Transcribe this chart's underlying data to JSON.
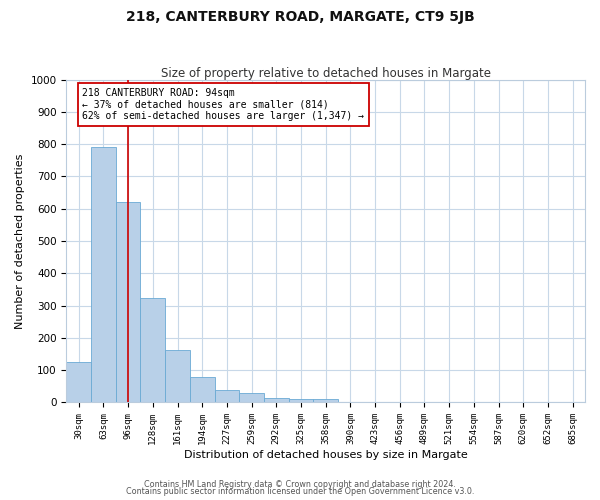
{
  "title": "218, CANTERBURY ROAD, MARGATE, CT9 5JB",
  "subtitle": "Size of property relative to detached houses in Margate",
  "xlabel": "Distribution of detached houses by size in Margate",
  "ylabel": "Number of detached properties",
  "bar_labels": [
    "30sqm",
    "63sqm",
    "96sqm",
    "128sqm",
    "161sqm",
    "194sqm",
    "227sqm",
    "259sqm",
    "292sqm",
    "325sqm",
    "358sqm",
    "390sqm",
    "423sqm",
    "456sqm",
    "489sqm",
    "521sqm",
    "554sqm",
    "587sqm",
    "620sqm",
    "652sqm",
    "685sqm"
  ],
  "bar_values": [
    125,
    790,
    620,
    325,
    162,
    80,
    40,
    28,
    15,
    12,
    12,
    0,
    0,
    0,
    0,
    0,
    0,
    0,
    0,
    0,
    0
  ],
  "bar_color": "#b8d0e8",
  "bar_edge_color": "#6aaad4",
  "vline_x_idx": 2,
  "vline_color": "#cc0000",
  "annotation_text": "218 CANTERBURY ROAD: 94sqm\n← 37% of detached houses are smaller (814)\n62% of semi-detached houses are larger (1,347) →",
  "annotation_box_color": "#ffffff",
  "annotation_box_edge_color": "#cc0000",
  "ylim": [
    0,
    1000
  ],
  "yticks": [
    0,
    100,
    200,
    300,
    400,
    500,
    600,
    700,
    800,
    900,
    1000
  ],
  "footer_line1": "Contains HM Land Registry data © Crown copyright and database right 2024.",
  "footer_line2": "Contains public sector information licensed under the Open Government Licence v3.0.",
  "background_color": "#ffffff",
  "grid_color": "#c8d8e8",
  "title_fontsize": 10,
  "subtitle_fontsize": 8.5
}
